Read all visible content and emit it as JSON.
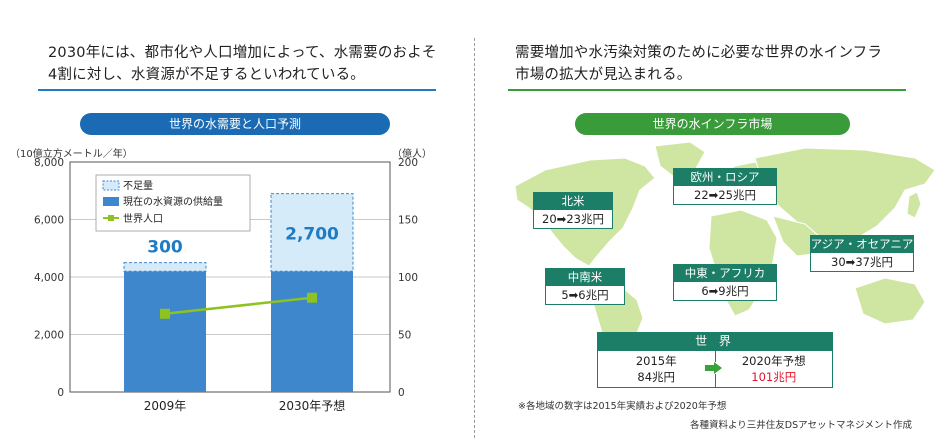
{
  "left": {
    "headline_line1": "2030年には、都市化や人口増加によって、水需要のおよそ",
    "headline_line2": "4割に対し、水資源が不足するといわれている。",
    "chart_title": "世界の水需要と人口予測"
  },
  "right": {
    "headline_line1": "需要増加や水汚染対策のために必要な世界の水インフラ",
    "headline_line2": "市場の拡大が見込まれる。",
    "chart_title": "世界の水インフラ市場"
  },
  "colors": {
    "blue_accent": "#1f7bc4",
    "title_pill_blue": "#1a6bb3",
    "title_pill_green": "#3a9b3a",
    "supply_bar": "#3f87cc",
    "shortage_bar": "#d5ebf9",
    "population_line": "#8dc21f",
    "map_fill": "#cfe6a3",
    "region_header": "#1c7e66",
    "highlight_red": "#e0142c"
  },
  "chart_data": {
    "type": "bar",
    "title": "世界の水需要と人口予測",
    "left_axis_unit": "（10億立方メートル／年）",
    "right_axis_unit": "（億人）",
    "categories": [
      "2009年",
      "2030年予想"
    ],
    "ylim": [
      0,
      8000
    ],
    "y2lim": [
      0,
      200
    ],
    "y_ticks": [
      "0",
      "2,000",
      "4,000",
      "6,000",
      "8,000"
    ],
    "y2_ticks": [
      "0",
      "50",
      "100",
      "150",
      "200"
    ],
    "legend": [
      "不足量",
      "現在の水資源の供給量",
      "世界人口"
    ],
    "legend_position": "top-left",
    "series": [
      {
        "name": "現在の水資源の供給量",
        "kind": "bar",
        "values": [
          4200,
          4200
        ]
      },
      {
        "name": "不足量",
        "kind": "stacked-bar",
        "values": [
          300,
          2700
        ],
        "labels": [
          "300",
          "2,700"
        ]
      },
      {
        "name": "世界人口",
        "kind": "line",
        "axis": "right",
        "values": [
          68,
          82
        ]
      }
    ]
  },
  "map": {
    "regions": [
      {
        "name": "北米",
        "value": "20➡23兆円"
      },
      {
        "name": "欧州・ロシア",
        "value": "22➡25兆円"
      },
      {
        "name": "アジア・オセアニア",
        "value": "30➡37兆円"
      },
      {
        "name": "中南米",
        "value": "5➡6兆円"
      },
      {
        "name": "中東・アフリカ",
        "value": "6➡9兆円"
      }
    ],
    "world": {
      "name": "世 界",
      "year_from": "2015年",
      "value_from": "84兆円",
      "year_to": "2020年予想",
      "value_to": "101兆円"
    },
    "footnote": "※各地域の数字は2015年実績および2020年予想",
    "source": "各種資料より三井住友DSアセットマネジメント作成"
  }
}
